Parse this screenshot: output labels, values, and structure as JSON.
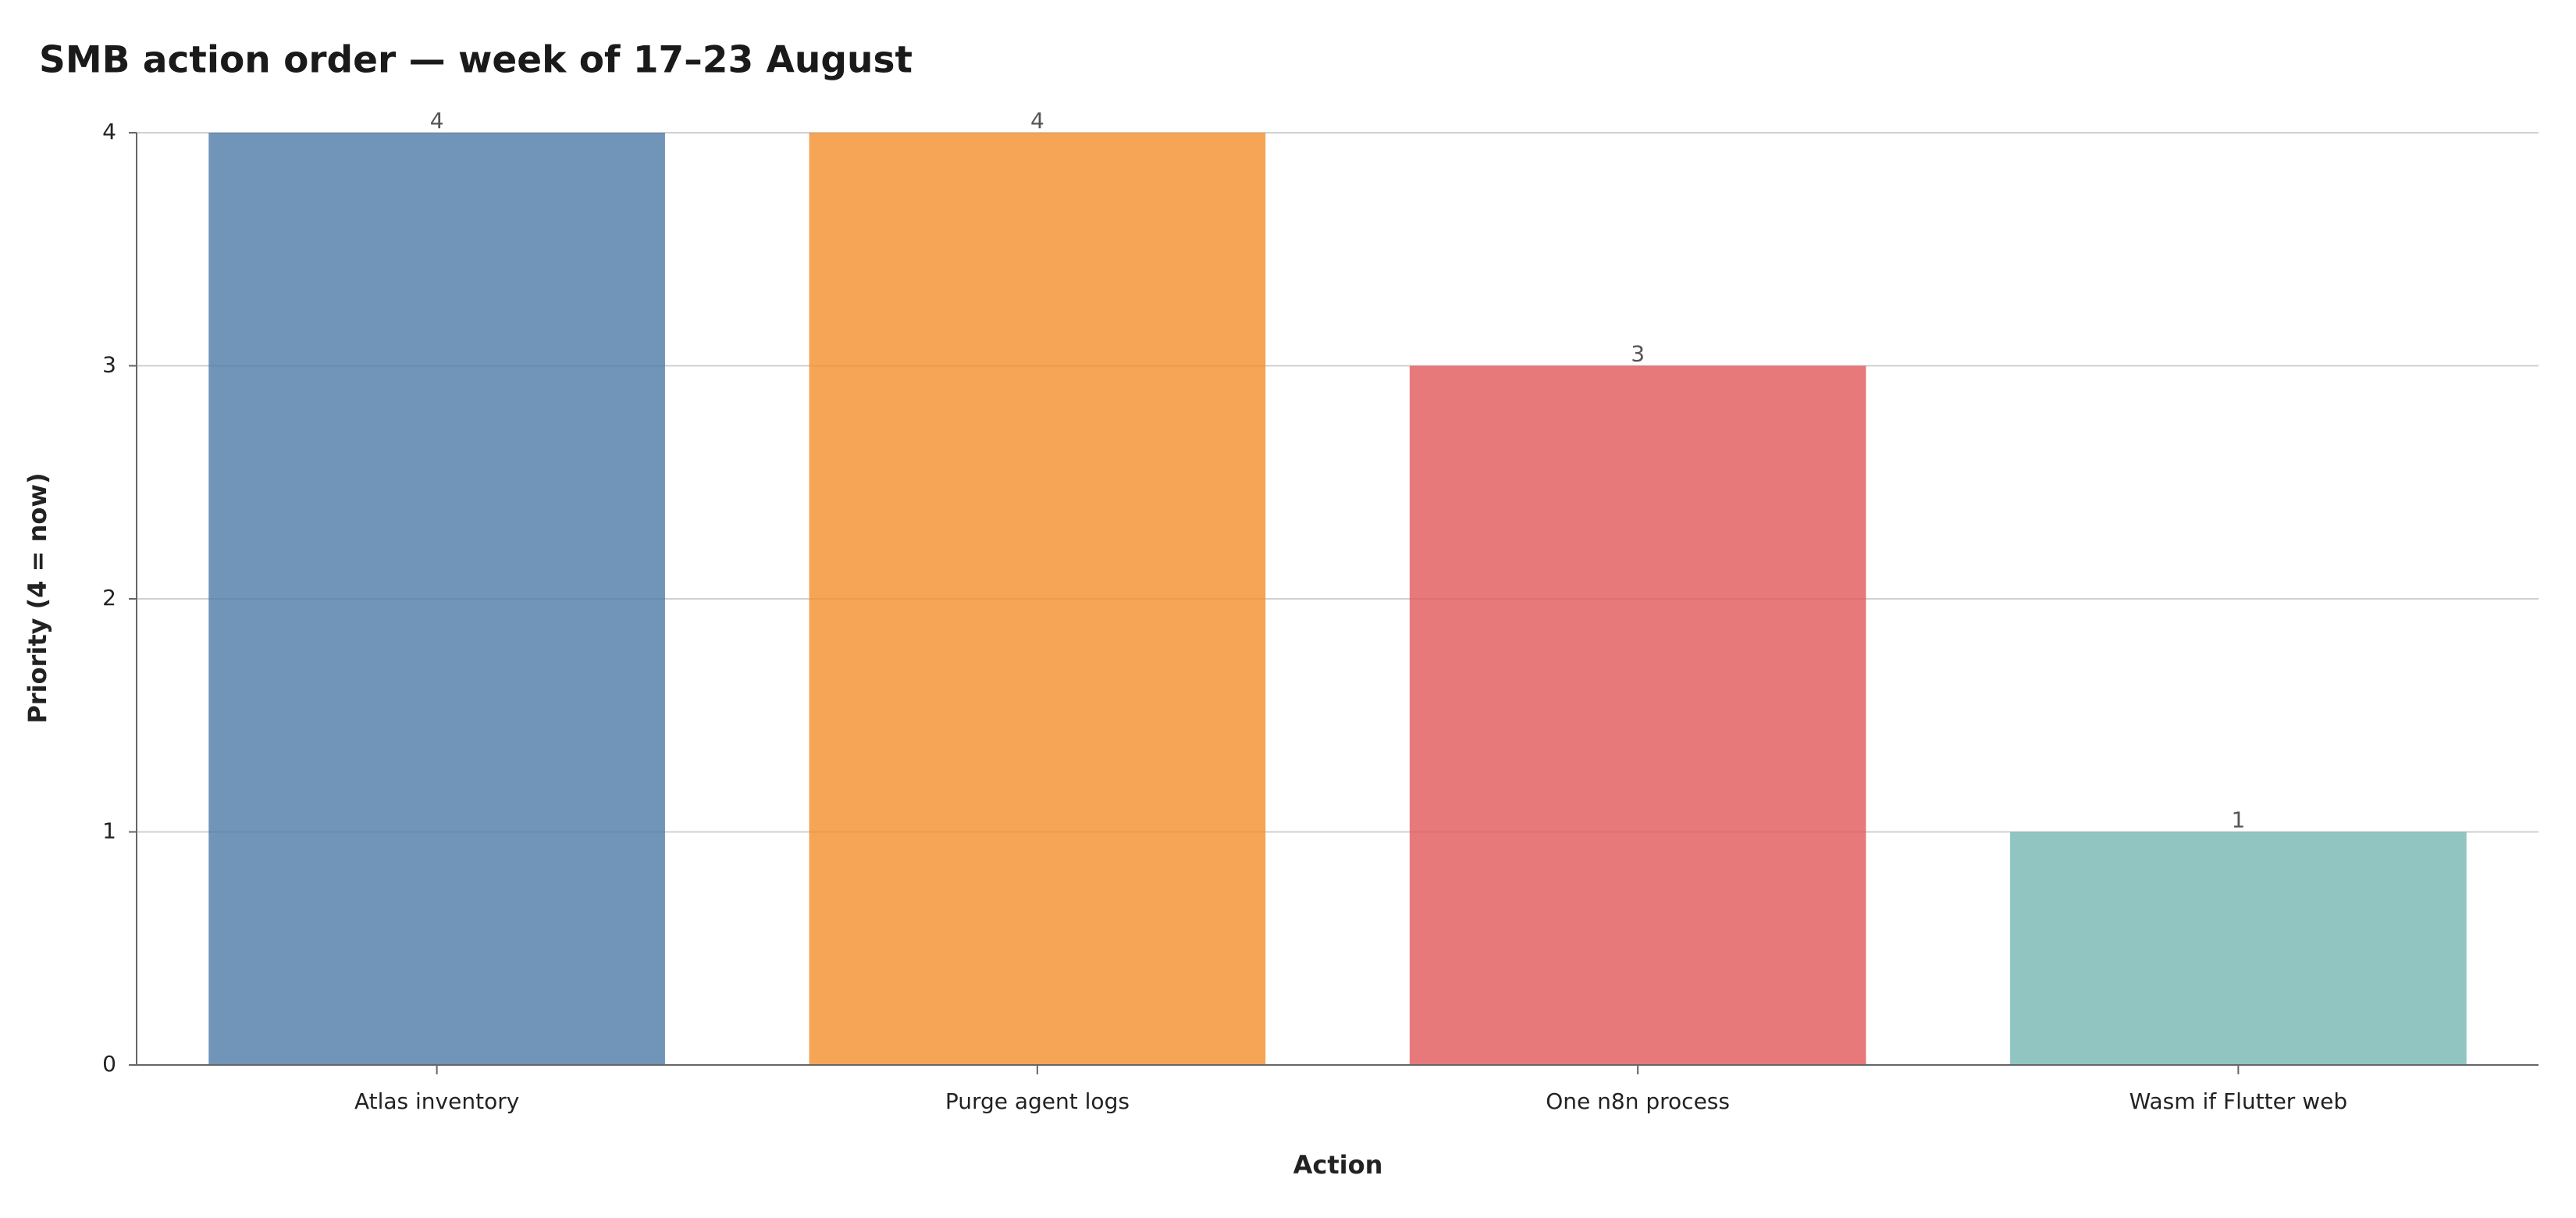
{
  "chart_data": {
    "type": "bar",
    "title": "SMB action order — week of 17–23 August",
    "x_label": "Action",
    "y_label": "Priority (4 = now)",
    "categories": [
      "Atlas inventory",
      "Purge agent logs",
      "One n8n process",
      "Wasm if Flutter web"
    ],
    "values": [
      4,
      4,
      3,
      1
    ],
    "colors": [
      "#4e79a7",
      "#f28e2b",
      "#e15759",
      "#76b7b2"
    ],
    "ylim": [
      0,
      4
    ],
    "yticks": [
      0,
      1,
      2,
      3,
      4
    ],
    "grid": true
  }
}
